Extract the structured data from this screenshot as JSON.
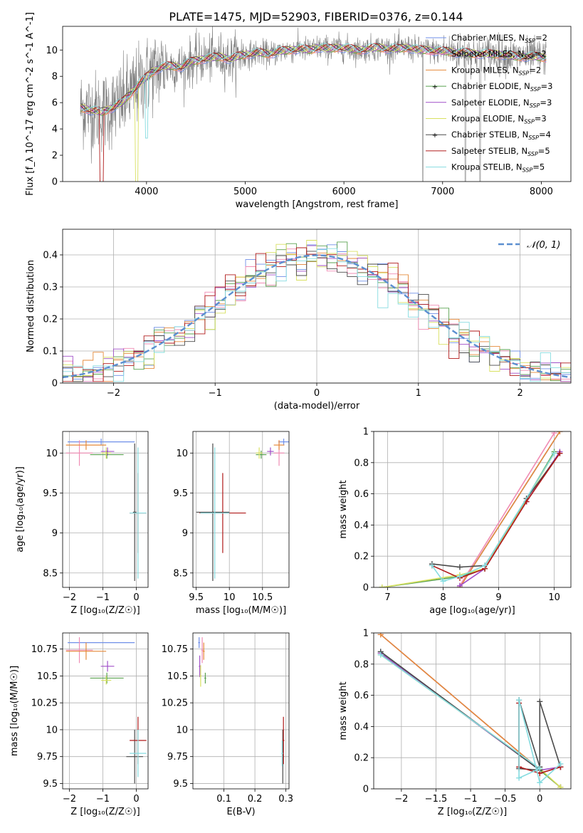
{
  "figure": {
    "title": "PLATE=1475, MJD=52903, FIBERID=0376, z=0.144"
  },
  "series_styles": [
    {
      "name": "Chabrier MILES",
      "nssp": "2",
      "color": "#6f8fe8"
    },
    {
      "name": "Salpeter MILES",
      "nssp": "2",
      "color": "#f08cb4"
    },
    {
      "name": "Kroupa MILES",
      "nssp": "2",
      "color": "#e58a3a"
    },
    {
      "name": "Chabrier ELODIE",
      "nssp": "3",
      "color": "#59a14f"
    },
    {
      "name": "Salpeter ELODIE",
      "nssp": "3",
      "color": "#a04fc8"
    },
    {
      "name": "Kroupa ELODIE",
      "nssp": "3",
      "color": "#d8e060"
    },
    {
      "name": "Chabrier STELIB",
      "nssp": "4",
      "color": "#4a4a4a"
    },
    {
      "name": "Salpeter STELIB",
      "nssp": "5",
      "color": "#b01a1a"
    },
    {
      "name": "Kroupa STELIB",
      "nssp": "5",
      "color": "#86dce0"
    }
  ],
  "chart_data": [
    {
      "id": "spectrum",
      "type": "line",
      "xlabel": "wavelength [Angstrom, rest frame]",
      "ylabel": "Flux [f_λ 10^-17 erg cm^-2 s^-1 A^-1]",
      "xlim": [
        3150,
        8300
      ],
      "ylim": [
        0,
        11.8
      ],
      "xticks": [
        4000,
        5000,
        6000,
        7000,
        8000
      ],
      "yticks": [
        0,
        2,
        4,
        6,
        8,
        10
      ],
      "data_color": "#7f7f7f",
      "data_x": [
        3350,
        3450,
        3550,
        3650,
        3750,
        3850,
        3950,
        4050,
        4150,
        4250,
        4350,
        4450,
        4550,
        4650,
        4750,
        4850,
        4950,
        5050,
        5150,
        5250,
        5350,
        5450,
        5550,
        5650,
        5750,
        5850,
        5950,
        6050,
        6150,
        6250,
        6350,
        6450,
        6550,
        6650,
        6750,
        6850,
        6950,
        7050,
        7150,
        7250,
        7350,
        7450,
        7550,
        7650,
        7750,
        7850,
        7950,
        8050
      ],
      "model_y": [
        5.6,
        5.4,
        5.3,
        5.6,
        6.0,
        6.8,
        7.6,
        8.3,
        8.7,
        8.8,
        8.7,
        9.1,
        9.3,
        9.4,
        9.5,
        9.3,
        9.6,
        9.7,
        9.8,
        9.7,
        9.9,
        10.0,
        10.1,
        10.0,
        10.2,
        10.1,
        10.2,
        10.1,
        10.0,
        10.1,
        10.2,
        10.1,
        10.1,
        10.2,
        10.0,
        10.0,
        9.9,
        9.9,
        9.8,
        9.8,
        9.7,
        9.7,
        9.7,
        9.6,
        9.5,
        9.5,
        9.5,
        9.4
      ]
    },
    {
      "id": "residuals",
      "type": "histogram",
      "xlabel": "(data-model)/error",
      "ylabel": "Normed distribution",
      "xlim": [
        -2.5,
        2.5
      ],
      "ylim": [
        0,
        0.48
      ],
      "xticks": [
        -2,
        -1,
        0,
        1,
        2
      ],
      "yticks": [
        0.0,
        0.1,
        0.2,
        0.3,
        0.4
      ],
      "legend": "𝒩(0, 1)",
      "gauss_color": "#5b8fd0",
      "bin_width": 0.1
    },
    {
      "id": "age_vs_Z",
      "type": "errorbar",
      "xlabel": "Z [log₁₀(Z/Z☉)]",
      "ylabel": "age  [log₁₀(age/yr)]",
      "xlim": [
        -2.2,
        0.35
      ],
      "ylim": [
        8.32,
        10.27
      ],
      "xticks": [
        -2,
        -1,
        0
      ],
      "yticks": [
        8.5,
        9.0,
        9.5,
        10.0
      ],
      "points": [
        {
          "s": 0,
          "x": -1.05,
          "y": 10.14,
          "xe": 1.0,
          "ye": 0.04
        },
        {
          "s": 1,
          "x": -1.7,
          "y": 10.0,
          "xe": 0.4,
          "ye": 0.16
        },
        {
          "s": 2,
          "x": -1.5,
          "y": 10.1,
          "xe": 0.6,
          "ye": 0.06
        },
        {
          "s": 3,
          "x": -0.88,
          "y": 9.98,
          "xe": 0.5,
          "ye": 0.05
        },
        {
          "s": 4,
          "x": -0.86,
          "y": 10.02,
          "xe": 0.2,
          "ye": 0.05
        },
        {
          "s": 5,
          "x": -0.9,
          "y": 10.0,
          "xe": 0.15,
          "ye": 0.07
        },
        {
          "s": 6,
          "x": -0.05,
          "y": 9.26,
          "xe": 0.05,
          "ye": 0.86
        },
        {
          "s": 7,
          "x": 0.05,
          "y": 9.25,
          "xe": 0.25,
          "ye": 0.5
        },
        {
          "s": 8,
          "x": 0.05,
          "y": 9.25,
          "xe": 0.25,
          "ye": 0.82
        }
      ]
    },
    {
      "id": "age_vs_mass",
      "type": "errorbar",
      "xlabel": "mass [log₁₀(M/M☉)]",
      "ylabel": "",
      "xlim": [
        9.45,
        10.9
      ],
      "ylim": [
        8.32,
        10.27
      ],
      "xticks": [
        9.5,
        10.0,
        10.5
      ],
      "yticks": [
        8.5,
        9.0,
        9.5,
        10.0
      ],
      "points": [
        {
          "s": 0,
          "x": 10.82,
          "y": 10.14,
          "xe": 0.08,
          "ye": 0.04
        },
        {
          "s": 1,
          "x": 10.75,
          "y": 10.0,
          "xe": 0.08,
          "ye": 0.16
        },
        {
          "s": 2,
          "x": 10.75,
          "y": 10.1,
          "xe": 0.08,
          "ye": 0.06
        },
        {
          "s": 3,
          "x": 10.48,
          "y": 9.98,
          "xe": 0.08,
          "ye": 0.05
        },
        {
          "s": 4,
          "x": 10.62,
          "y": 10.02,
          "xe": 0.05,
          "ye": 0.05
        },
        {
          "s": 5,
          "x": 10.45,
          "y": 10.0,
          "xe": 0.05,
          "ye": 0.07
        },
        {
          "s": 6,
          "x": 9.75,
          "y": 9.26,
          "xe": 0.25,
          "ye": 0.86
        },
        {
          "s": 7,
          "x": 9.9,
          "y": 9.25,
          "xe": 0.35,
          "ye": 0.5
        },
        {
          "s": 8,
          "x": 9.78,
          "y": 9.25,
          "xe": 0.22,
          "ye": 0.82
        }
      ]
    },
    {
      "id": "weight_vs_age",
      "type": "line",
      "xlabel": "age  [log₁₀(age/yr)]",
      "ylabel": "mass weight",
      "xlim": [
        6.75,
        10.3
      ],
      "ylim": [
        0,
        1.0
      ],
      "xticks": [
        7,
        8,
        9,
        10
      ],
      "yticks": [
        0.0,
        0.2,
        0.4,
        0.6,
        0.8,
        1.0
      ],
      "lines": [
        {
          "s": 0,
          "x": [
            8.3,
            10.1
          ],
          "y": [
            0.0,
            1.0
          ]
        },
        {
          "s": 1,
          "x": [
            8.3,
            10.0
          ],
          "y": [
            0.01,
            0.99
          ]
        },
        {
          "s": 2,
          "x": [
            8.3,
            10.1
          ],
          "y": [
            0.0,
            1.0
          ]
        },
        {
          "s": 3,
          "x": [
            6.9,
            8.3,
            8.75,
            10.0
          ],
          "y": [
            0.0,
            0.07,
            0.12,
            0.87
          ]
        },
        {
          "s": 4,
          "x": [
            8.3,
            8.75,
            9.5,
            10.1
          ],
          "y": [
            0.01,
            0.12,
            0.55,
            0.87
          ]
        },
        {
          "s": 5,
          "x": [
            6.9,
            8.3,
            8.75,
            10.0
          ],
          "y": [
            0.0,
            0.08,
            0.12,
            0.86
          ]
        },
        {
          "s": 6,
          "x": [
            7.8,
            8.3,
            8.75,
            9.5,
            10.1
          ],
          "y": [
            0.15,
            0.13,
            0.14,
            0.57,
            0.86
          ]
        },
        {
          "s": 7,
          "x": [
            7.8,
            8.3,
            8.75,
            9.5,
            10.1
          ],
          "y": [
            0.14,
            0.06,
            0.12,
            0.55,
            0.86
          ]
        },
        {
          "s": 8,
          "x": [
            7.8,
            8.0,
            8.3,
            8.75,
            10.0
          ],
          "y": [
            0.14,
            0.04,
            0.07,
            0.14,
            0.86
          ]
        }
      ]
    },
    {
      "id": "mass_vs_Z",
      "type": "errorbar",
      "xlabel": "Z [log₁₀(Z/Z☉)]",
      "ylabel": "mass [log₁₀(M/M☉)]",
      "xlim": [
        -2.2,
        0.35
      ],
      "ylim": [
        9.45,
        10.9
      ],
      "xticks": [
        -2,
        -1,
        0
      ],
      "yticks": [
        9.5,
        9.75,
        10.0,
        10.25,
        10.5,
        10.75
      ],
      "points": [
        {
          "s": 0,
          "x": -1.05,
          "y": 10.81,
          "xe": 1.0,
          "ye": 0.0
        },
        {
          "s": 1,
          "x": -1.7,
          "y": 10.74,
          "xe": 0.4,
          "ye": 0.12
        },
        {
          "s": 2,
          "x": -1.5,
          "y": 10.73,
          "xe": 0.6,
          "ye": 0.08
        },
        {
          "s": 3,
          "x": -0.88,
          "y": 10.48,
          "xe": 0.5,
          "ye": 0.05
        },
        {
          "s": 4,
          "x": -0.86,
          "y": 10.59,
          "xe": 0.2,
          "ye": 0.05
        },
        {
          "s": 5,
          "x": -0.9,
          "y": 10.46,
          "xe": 0.15,
          "ye": 0.04
        },
        {
          "s": 6,
          "x": -0.05,
          "y": 9.75,
          "xe": 0.25,
          "ye": 0.25
        },
        {
          "s": 7,
          "x": 0.05,
          "y": 9.9,
          "xe": 0.25,
          "ye": 0.22
        },
        {
          "s": 8,
          "x": 0.05,
          "y": 9.78,
          "xe": 0.25,
          "ye": 0.22
        }
      ]
    },
    {
      "id": "mass_vs_ebv",
      "type": "errorbar",
      "xlabel": "E(B-V)",
      "ylabel": "",
      "xlim": [
        0.0,
        0.31
      ],
      "ylim": [
        9.45,
        10.9
      ],
      "xticks": [
        0.1,
        0.2,
        0.3
      ],
      "yticks": [
        9.5,
        9.75,
        10.0,
        10.25,
        10.5,
        10.75
      ],
      "points": [
        {
          "s": 0,
          "x": 0.02,
          "y": 10.81,
          "xe": 0.003,
          "ye": 0.05
        },
        {
          "s": 1,
          "x": 0.03,
          "y": 10.74,
          "xe": 0.003,
          "ye": 0.12
        },
        {
          "s": 2,
          "x": 0.035,
          "y": 10.73,
          "xe": 0.003,
          "ye": 0.08
        },
        {
          "s": 3,
          "x": 0.04,
          "y": 10.48,
          "xe": 0.003,
          "ye": 0.05
        },
        {
          "s": 4,
          "x": 0.022,
          "y": 10.59,
          "xe": 0.003,
          "ye": 0.1
        },
        {
          "s": 5,
          "x": 0.025,
          "y": 10.5,
          "xe": 0.003,
          "ye": 0.1
        },
        {
          "s": 6,
          "x": 0.29,
          "y": 9.75,
          "xe": 0.003,
          "ye": 0.25
        },
        {
          "s": 7,
          "x": 0.292,
          "y": 9.9,
          "xe": 0.003,
          "ye": 0.22
        },
        {
          "s": 8,
          "x": 0.288,
          "y": 9.78,
          "xe": 0.003,
          "ye": 0.12
        }
      ]
    },
    {
      "id": "weight_vs_Z",
      "type": "line",
      "xlabel": "Z [log₁₀(Z/Z☉)]",
      "ylabel": "mass weight",
      "xlim": [
        -2.4,
        0.45
      ],
      "ylim": [
        0,
        1.0
      ],
      "xticks": [
        -2.0,
        -1.5,
        -1.0,
        -0.5,
        0.0
      ],
      "yticks": [
        0.0,
        0.2,
        0.4,
        0.6,
        0.8,
        1.0
      ],
      "lines": [
        {
          "s": 0,
          "x": [
            -2.3,
            0.3
          ],
          "y": [
            0.99,
            0.01
          ]
        },
        {
          "s": 1,
          "x": [
            -2.3,
            0.3
          ],
          "y": [
            0.99,
            0.01
          ]
        },
        {
          "s": 2,
          "x": [
            -2.3,
            0.3
          ],
          "y": [
            0.99,
            0.01
          ]
        },
        {
          "s": 3,
          "x": [
            -2.3,
            0.0,
            0.3
          ],
          "y": [
            0.87,
            0.12,
            0.01
          ]
        },
        {
          "s": 4,
          "x": [
            -2.3,
            0.0,
            0.3
          ],
          "y": [
            0.87,
            0.12,
            0.14
          ]
        },
        {
          "s": 5,
          "x": [
            -2.3,
            0.0,
            0.3
          ],
          "y": [
            0.86,
            0.13,
            0.01
          ]
        },
        {
          "s": 6,
          "x": [
            -2.3,
            0.0,
            -0.3,
            -0.3,
            0.0,
            0.0,
            0.3
          ],
          "y": [
            0.88,
            0.12,
            0.13,
            0.57,
            0.14,
            0.56,
            0.14
          ]
        },
        {
          "s": 7,
          "x": [
            -0.3,
            -0.3,
            0.0,
            0.3
          ],
          "y": [
            0.55,
            0.14,
            0.1,
            0.14
          ]
        },
        {
          "s": 8,
          "x": [
            -2.3,
            0.0,
            -0.3,
            -0.3,
            0.0,
            0.3
          ],
          "y": [
            0.86,
            0.13,
            0.07,
            0.57,
            0.04,
            0.16
          ]
        }
      ]
    }
  ]
}
